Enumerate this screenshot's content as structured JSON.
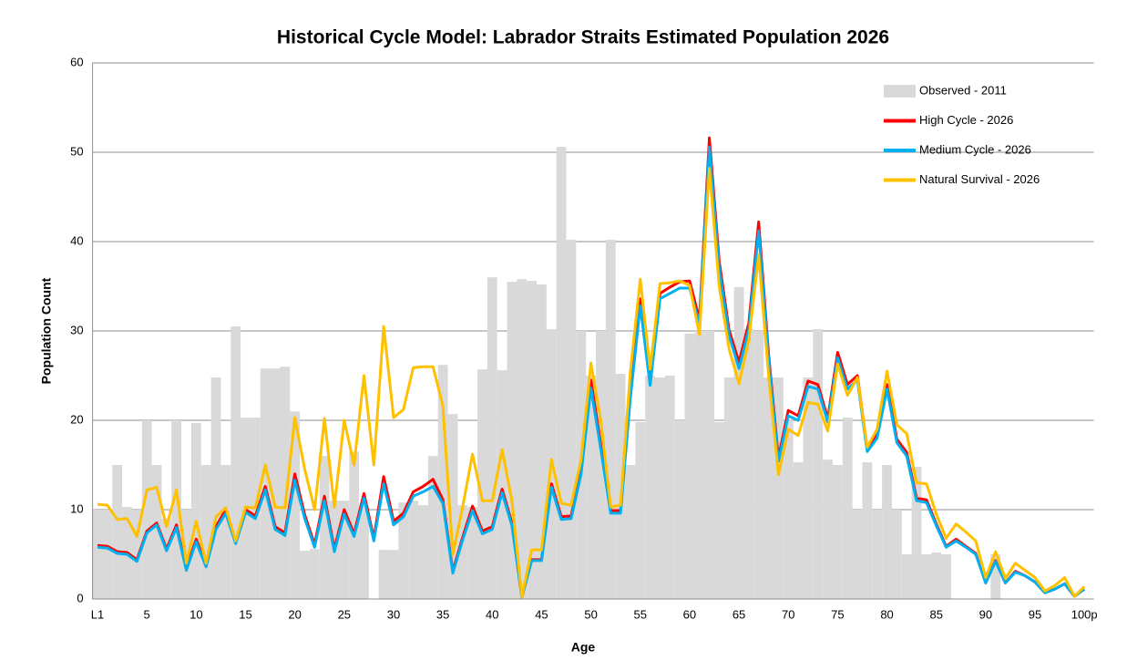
{
  "chart_data": {
    "type": "combo",
    "title": "Historical Cycle Model: Labrador Straits Estimated Population 2026",
    "x_label": "Age",
    "y_label": "Population Count",
    "categories": [
      "L1",
      null,
      null,
      null,
      null,
      "5",
      null,
      null,
      null,
      null,
      "10",
      null,
      null,
      null,
      null,
      "15",
      null,
      null,
      null,
      null,
      "20",
      null,
      null,
      null,
      null,
      "25",
      null,
      null,
      null,
      null,
      "30",
      null,
      null,
      null,
      null,
      "35",
      null,
      null,
      null,
      null,
      "40",
      null,
      null,
      null,
      null,
      "45",
      null,
      null,
      null,
      null,
      "50",
      null,
      null,
      null,
      null,
      "55",
      null,
      null,
      null,
      null,
      "60",
      null,
      null,
      null,
      null,
      "65",
      null,
      null,
      null,
      null,
      "70",
      null,
      null,
      null,
      null,
      "75",
      null,
      null,
      null,
      null,
      "80",
      null,
      null,
      null,
      null,
      "85",
      null,
      null,
      null,
      null,
      "90",
      null,
      null,
      null,
      null,
      "95",
      null,
      null,
      null,
      null,
      "100p"
    ],
    "series": [
      {
        "name": "Observed - 2011",
        "type": "bar",
        "color": "#d9d9d9",
        "values": [
          10,
          10,
          15,
          10.3,
          10,
          20,
          15,
          9,
          20,
          10,
          19.7,
          15,
          24.8,
          15,
          30.5,
          20.3,
          20.3,
          25.8,
          25.8,
          26,
          21,
          5.4,
          5.6,
          16,
          11,
          11,
          16.5,
          10.5,
          0,
          5.5,
          5.5,
          10.8,
          11,
          10.5,
          16,
          26.2,
          20.7,
          10.5,
          10.3,
          25.7,
          36,
          25.6,
          35.5,
          35.8,
          35.6,
          35.2,
          30.2,
          50.6,
          40.2,
          30,
          25,
          30,
          40.2,
          25.2,
          15,
          19.8,
          25,
          24.8,
          25,
          20,
          29.7,
          30,
          30,
          19.8,
          24.8,
          34.9,
          30.2,
          30,
          24.8,
          24.8,
          20,
          15.3,
          24.8,
          30.2,
          15.6,
          15,
          20.3,
          10,
          15.3,
          10,
          15,
          10,
          5,
          14.8,
          5,
          5.2,
          5,
          0,
          0,
          0,
          0,
          5,
          0,
          0,
          0,
          0,
          0,
          0,
          0,
          0,
          0
        ]
      },
      {
        "name": "High Cycle - 2026",
        "type": "line",
        "color": "#ff0000",
        "values": [
          6.0,
          5.9,
          5.3,
          5.2,
          4.4,
          7.6,
          8.5,
          5.6,
          8.3,
          3.4,
          6.7,
          3.8,
          8.1,
          10.0,
          6.4,
          10.0,
          9.3,
          12.6,
          8.1,
          7.4,
          14.0,
          9.4,
          6.1,
          11.5,
          5.6,
          10.0,
          7.3,
          11.8,
          6.8,
          13.7,
          8.7,
          9.6,
          12.0,
          12.6,
          13.4,
          11.1,
          3.1,
          6.9,
          10.4,
          7.6,
          8.1,
          12.3,
          8.5,
          0.2,
          4.4,
          4.4,
          12.9,
          9.2,
          9.3,
          14.5,
          24.5,
          17.3,
          9.9,
          9.9,
          23.2,
          33.6,
          24.5,
          34.2,
          34.9,
          35.5,
          35.6,
          31.3,
          51.6,
          37.8,
          30.1,
          26.5,
          30.9,
          42.2,
          27.4,
          15.8,
          21.1,
          20.5,
          24.4,
          24.0,
          20.2,
          27.6,
          24.0,
          25.0,
          16.8,
          18.4,
          24.0,
          17.9,
          16.4,
          11.3,
          11.1,
          8.4,
          5.9,
          6.7,
          5.9,
          5.1,
          1.8,
          4.3,
          1.8,
          3.1,
          2.6,
          1.9,
          0.7,
          1.1,
          1.7,
          0.3,
          1.1
        ]
      },
      {
        "name": "Medium Cycle - 2026",
        "type": "line",
        "color": "#00b0f0",
        "values": [
          5.8,
          5.7,
          5.1,
          5.0,
          4.2,
          7.4,
          8.3,
          5.4,
          8.0,
          3.2,
          6.4,
          3.6,
          7.8,
          9.6,
          6.2,
          9.7,
          9.0,
          12.2,
          7.8,
          7.1,
          13.3,
          9.0,
          5.8,
          11.0,
          5.3,
          9.5,
          7.0,
          11.3,
          6.5,
          12.9,
          8.3,
          9.2,
          11.5,
          12.0,
          12.6,
          10.7,
          2.9,
          6.6,
          9.9,
          7.3,
          7.8,
          11.9,
          8.2,
          0.2,
          4.3,
          4.3,
          12.5,
          8.9,
          9.0,
          14.0,
          23.6,
          16.8,
          9.6,
          9.6,
          22.5,
          32.8,
          23.9,
          33.6,
          34.2,
          34.8,
          34.8,
          30.8,
          50.6,
          37.0,
          29.5,
          25.8,
          30.2,
          41.2,
          26.8,
          15.4,
          20.5,
          20.0,
          23.8,
          23.5,
          19.8,
          27.0,
          23.5,
          24.5,
          16.5,
          18.0,
          23.5,
          17.5,
          16.0,
          11.0,
          10.8,
          8.2,
          5.8,
          6.5,
          5.8,
          5.0,
          1.8,
          4.2,
          1.8,
          3.0,
          2.6,
          1.9,
          0.7,
          1.1,
          1.7,
          0.3,
          1.1
        ]
      },
      {
        "name": "Natural Survival - 2026",
        "type": "line",
        "color": "#ffc000",
        "values": [
          10.6,
          10.5,
          8.9,
          9.0,
          7.0,
          12.2,
          12.5,
          8.1,
          12.2,
          4.0,
          8.7,
          4.0,
          9.2,
          10.2,
          6.5,
          10.3,
          10.2,
          15.0,
          10.3,
          10.2,
          20.3,
          14.5,
          10.0,
          20.2,
          10.3,
          20.0,
          15.0,
          25.0,
          15.0,
          30.5,
          20.3,
          21.2,
          25.9,
          26.0,
          26.0,
          21.6,
          5.0,
          10.3,
          16.2,
          11.0,
          11.0,
          16.7,
          11.0,
          0.2,
          5.5,
          5.5,
          15.6,
          10.7,
          10.5,
          15.6,
          26.4,
          20.0,
          10.3,
          10.5,
          25.5,
          35.8,
          25.7,
          35.3,
          35.4,
          35.6,
          35.1,
          29.6,
          48.2,
          35.0,
          28.0,
          24.1,
          29.0,
          38.5,
          25.0,
          13.9,
          19.0,
          18.3,
          22.0,
          21.8,
          18.8,
          26.3,
          22.8,
          24.8,
          17.0,
          19.0,
          25.5,
          19.5,
          18.5,
          13.0,
          12.9,
          9.5,
          6.8,
          8.4,
          7.5,
          6.5,
          2.4,
          5.3,
          2.3,
          4.0,
          3.2,
          2.4,
          0.9,
          1.5,
          2.4,
          0.3,
          1.4
        ]
      }
    ],
    "ylim": [
      0,
      60
    ],
    "yticks": [
      0,
      10,
      20,
      30,
      40,
      50,
      60
    ],
    "grid": true,
    "legend": "top-right"
  }
}
